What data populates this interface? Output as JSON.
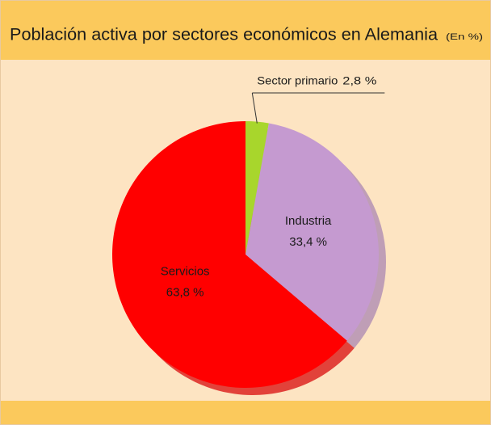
{
  "chart_data": {
    "type": "pie",
    "title": "Población activa por sectores económicos en Alemania",
    "subtitle": "(En %)",
    "categories": [
      "Sector primario",
      "Industria",
      "Servicios"
    ],
    "values": [
      2.8,
      33.4,
      63.8
    ],
    "value_labels": [
      "2,8 %",
      "33,4 %",
      "63,8 %"
    ],
    "colors": [
      "#a8d62c",
      "#c59ad0",
      "#ff0000"
    ]
  }
}
